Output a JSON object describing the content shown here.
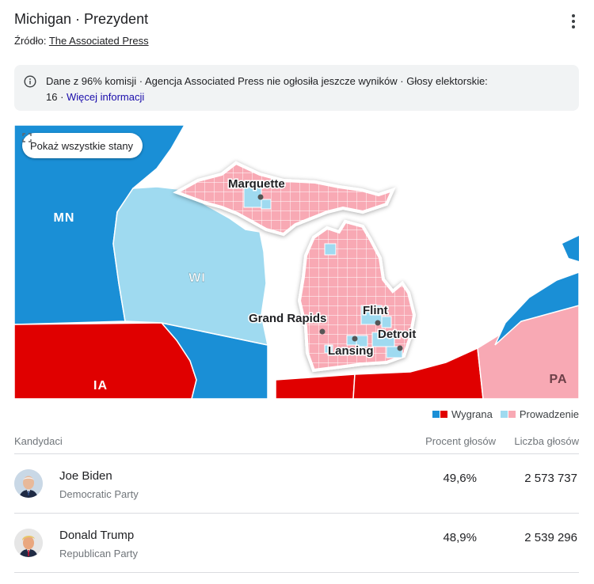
{
  "header": {
    "title": "Michigan · Prezydent",
    "source_label": "Źródło:",
    "source_link": "The Associated Press"
  },
  "notice": {
    "icon": "info-icon",
    "text": "Dane z 96% komisji · Agencja Associated Press nie ogłosiła jeszcze wyników · Głosy elektorskie: 16 · ",
    "link": "Więcej informacji"
  },
  "map": {
    "show_all_button": "Pokaż wszystkie stany",
    "states": [
      {
        "abbr": "MN",
        "status": "Wygrana",
        "party": "blue"
      },
      {
        "abbr": "WI",
        "status": "Prowadzenie",
        "party": "blue"
      },
      {
        "abbr": "IA",
        "status": "Wygrana",
        "party": "red"
      },
      {
        "abbr": "PA",
        "status": "Prowadzenie",
        "party": "red"
      }
    ],
    "cities": [
      "Marquette",
      "Grand Rapids",
      "Flint",
      "Detroit",
      "Lansing"
    ]
  },
  "colors": {
    "win_blue": "#1a8fd6",
    "win_red": "#e00000",
    "lead_blue": "#9fdaf0",
    "lead_red": "#f8a9b4",
    "water": "#ffffff"
  },
  "legend": {
    "win_label": "Wygrana",
    "lead_label": "Prowadzenie"
  },
  "table": {
    "col_candidates": "Kandydaci",
    "col_percent": "Procent głosów",
    "col_votes": "Liczba głosów",
    "rows": [
      {
        "name": "Joe Biden",
        "party": "Democratic Party",
        "percent": "49,6%",
        "votes": "2 573 737"
      },
      {
        "name": "Donald Trump",
        "party": "Republican Party",
        "percent": "48,9%",
        "votes": "2 539 296"
      }
    ]
  }
}
